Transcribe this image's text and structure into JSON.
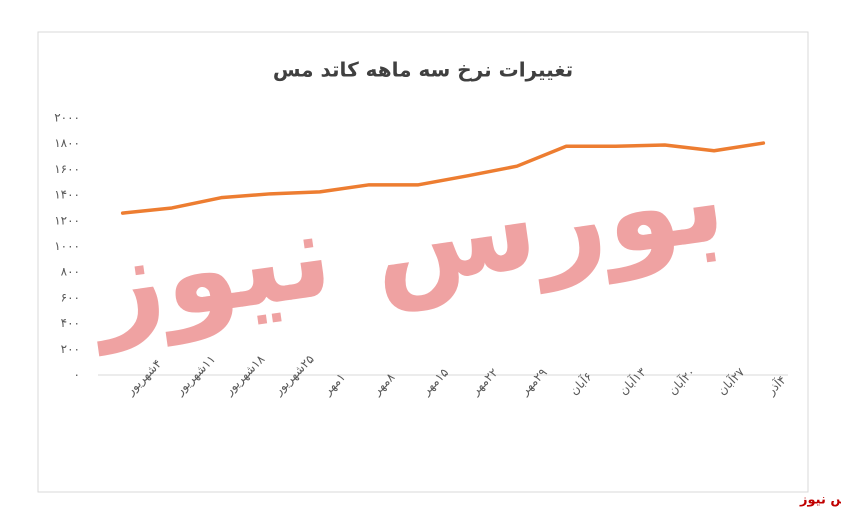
{
  "chart_data": {
    "type": "line",
    "title": "تغییرات نرخ سه ماهه کاتد مس",
    "categories": [
      "۴شهریور",
      "۱۱شهریور",
      "۱۸شهریور",
      "۲۵شهریور",
      "۱مهر",
      "۸مهر",
      "۱۵مهر",
      "۲۲مهر",
      "۲۹مهر",
      "۶آبان",
      "۱۳آبان",
      "۲۰آبان",
      "۲۷آبان",
      "۴آذر"
    ],
    "values": [
      1260,
      1300,
      1380,
      1410,
      1425,
      1480,
      1480,
      1550,
      1625,
      1780,
      1780,
      1790,
      1745,
      1805
    ],
    "color": "#ed7d31",
    "ylim": [
      0,
      2000
    ],
    "yticks": [
      {
        "value": 0,
        "label": "۰"
      },
      {
        "value": 200,
        "label": "۲۰۰"
      },
      {
        "value": 400,
        "label": "۴۰۰"
      },
      {
        "value": 600,
        "label": "۶۰۰"
      },
      {
        "value": 800,
        "label": "۸۰۰"
      },
      {
        "value": 1000,
        "label": "۱۰۰۰"
      },
      {
        "value": 1200,
        "label": "۱۲۰۰"
      },
      {
        "value": 1400,
        "label": "۱۴۰۰"
      },
      {
        "value": 1600,
        "label": "۱۶۰۰"
      },
      {
        "value": 1800,
        "label": "۱۸۰۰"
      },
      {
        "value": 2000,
        "label": "۲۰۰۰"
      }
    ],
    "grid": false,
    "watermark": "بورس نیوز",
    "source": "بورس نیوز"
  }
}
